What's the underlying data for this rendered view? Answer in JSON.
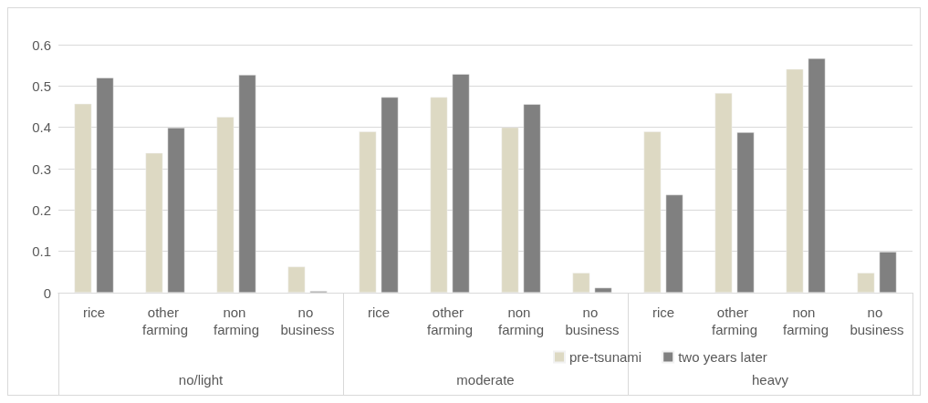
{
  "chart_data": {
    "type": "bar",
    "categories": [
      "rice",
      "other farming",
      "non farming",
      "no business",
      "rice",
      "other farming",
      "non farming",
      "no business",
      "rice",
      "other farming",
      "non farming",
      "no business"
    ],
    "series": [
      {
        "name": "pre-tsunami",
        "color": "#ddd9c3",
        "values": [
          0.457,
          0.338,
          0.425,
          0.063,
          0.39,
          0.473,
          0.4,
          0.048,
          0.39,
          0.483,
          0.541,
          0.048
        ]
      },
      {
        "name": "two years later",
        "color": "#808080",
        "values": [
          0.52,
          0.399,
          0.527,
          0.004,
          0.473,
          0.529,
          0.456,
          0.012,
          0.237,
          0.388,
          0.567,
          0.099
        ]
      }
    ],
    "annotations": [
      "no/light",
      "moderate",
      "heavy"
    ],
    "ylim": [
      0,
      0.6
    ],
    "yticks": [
      0,
      0.1,
      0.2,
      0.3,
      0.4,
      0.5,
      0.6
    ],
    "grid": "y",
    "legend": "bottom"
  }
}
